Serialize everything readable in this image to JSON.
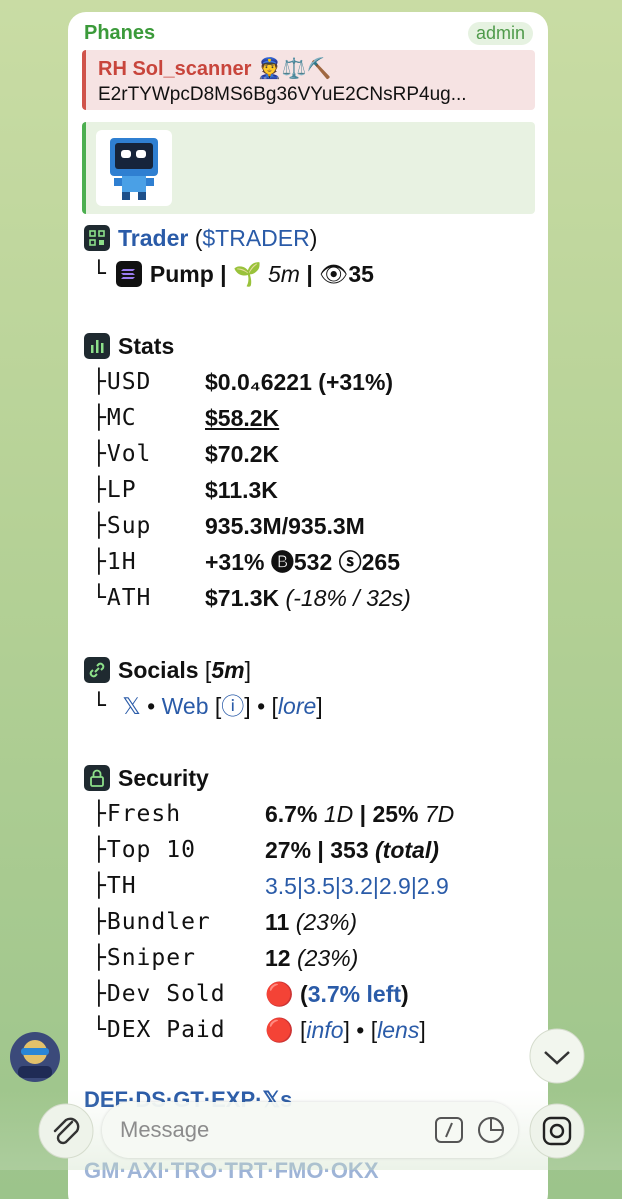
{
  "header": {
    "sender": "Phanes",
    "badge": "admin"
  },
  "reply": {
    "title": "RH Sol_scanner 👮⚖️⛏️",
    "text": "E2rTYWpcD8MS6Bg36VYuE2CNsRP4ug..."
  },
  "lines": [
    {
      "kind": "title",
      "icon": "qr",
      "runs": [
        {
          "t": "Trader",
          "s": "bl"
        },
        {
          "t": " (",
          "s": "n"
        },
        {
          "t": "$TRADER",
          "s": "l"
        },
        {
          "t": ")",
          "s": "n"
        }
      ]
    },
    {
      "kind": "sub",
      "runs": [
        {
          "t": "└",
          "s": "m"
        },
        {
          "icon": "sol"
        },
        {
          "t": "Pump |",
          "s": "b"
        },
        {
          "t": " 🌱 ",
          "s": "n"
        },
        {
          "t": "5m",
          "s": "i"
        },
        {
          "t": " | ",
          "s": "b"
        },
        {
          "t": "👁",
          "s": "n"
        },
        {
          "t": "35",
          "s": "b"
        }
      ]
    },
    {
      "kind": "heading",
      "icon": "stats",
      "runs": [
        {
          "t": "Stats",
          "s": "b"
        }
      ]
    },
    {
      "kind": "row",
      "label": "├USD",
      "runs": [
        {
          "t": "$0.0₄6221 (+31%)",
          "s": "b"
        }
      ]
    },
    {
      "kind": "row",
      "label": "├MC",
      "runs": [
        {
          "t": "$58.2K",
          "s": "bu"
        }
      ]
    },
    {
      "kind": "row",
      "label": "├Vol",
      "runs": [
        {
          "t": "$70.2K",
          "s": "b"
        }
      ]
    },
    {
      "kind": "row",
      "label": "├LP",
      "runs": [
        {
          "t": "$11.3K",
          "s": "b"
        }
      ]
    },
    {
      "kind": "row",
      "label": "├Sup",
      "runs": [
        {
          "t": "935.3M/935.3M",
          "s": "b"
        }
      ]
    },
    {
      "kind": "row",
      "label": "├1H",
      "runs": [
        {
          "t": "+31% 🅑532 ⓢ265",
          "s": "b"
        }
      ]
    },
    {
      "kind": "row",
      "label": "└ATH",
      "runs": [
        {
          "t": "$71.3K",
          "s": "b"
        },
        {
          "t": " (-18% / 32s)",
          "s": "i"
        }
      ]
    },
    {
      "kind": "heading",
      "icon": "link",
      "runs": [
        {
          "t": "Socials",
          "s": "b"
        },
        {
          "t": " [",
          "s": "n"
        },
        {
          "t": "5m",
          "s": "bi"
        },
        {
          "t": "]",
          "s": "n"
        }
      ]
    },
    {
      "kind": "sub",
      "runs": [
        {
          "t": "└",
          "s": "m"
        },
        {
          "t": " 𝕏",
          "s": "l"
        },
        {
          "t": " • ",
          "s": "n"
        },
        {
          "t": "Web",
          "s": "l"
        },
        {
          "t": " [",
          "s": "n"
        },
        {
          "t": "ⓘ",
          "s": "l"
        },
        {
          "t": "] • [",
          "s": "n"
        },
        {
          "t": "lore",
          "s": "li"
        },
        {
          "t": "]",
          "s": "n"
        }
      ]
    },
    {
      "kind": "heading",
      "icon": "lock",
      "runs": [
        {
          "t": "Security",
          "s": "b"
        }
      ]
    },
    {
      "kind": "row",
      "label": "├Fresh",
      "runs": [
        {
          "t": "6.7%",
          "s": "b"
        },
        {
          "t": " 1D",
          "s": "i"
        },
        {
          "t": " | ",
          "s": "b"
        },
        {
          "t": "25%",
          "s": "b"
        },
        {
          "t": " 7D",
          "s": "i"
        }
      ]
    },
    {
      "kind": "row",
      "label": "├Top 10",
      "runs": [
        {
          "t": "27% | 353",
          "s": "b"
        },
        {
          "t": " (total)",
          "s": "bi"
        }
      ]
    },
    {
      "kind": "row",
      "label": "├TH",
      "runs": [
        {
          "t": "3.5|3.5|3.2|2.9|2.9",
          "s": "l"
        }
      ]
    },
    {
      "kind": "row",
      "label": "├Bundler",
      "runs": [
        {
          "t": "11",
          "s": "b"
        },
        {
          "t": " (23%)",
          "s": "i"
        }
      ]
    },
    {
      "kind": "row",
      "label": "├Sniper",
      "runs": [
        {
          "t": "12",
          "s": "b"
        },
        {
          "t": " (23%)",
          "s": "i"
        }
      ]
    },
    {
      "kind": "row",
      "label": "├Dev Sold",
      "runs": [
        {
          "t": "🔴 ",
          "s": "n"
        },
        {
          "t": "(",
          "s": "b"
        },
        {
          "t": "3.7% left",
          "s": "bl"
        },
        {
          "t": ")",
          "s": "b"
        }
      ]
    },
    {
      "kind": "row",
      "label": "└DEX Paid",
      "runs": [
        {
          "t": "🔴 ",
          "s": "n"
        },
        {
          "t": "[",
          "s": "n"
        },
        {
          "t": "info",
          "s": "li"
        },
        {
          "t": "] • [",
          "s": "n"
        },
        {
          "t": "lens",
          "s": "li"
        },
        {
          "t": "]",
          "s": "n"
        }
      ]
    },
    {
      "kind": "links",
      "runs": [
        {
          "t": "DEF·DS·GT·EXP·𝕏s",
          "s": "bl"
        }
      ]
    }
  ],
  "footer_links": "GM·AXI·TRO·TRT·FMO·OKX",
  "input": {
    "placeholder": "Message"
  }
}
